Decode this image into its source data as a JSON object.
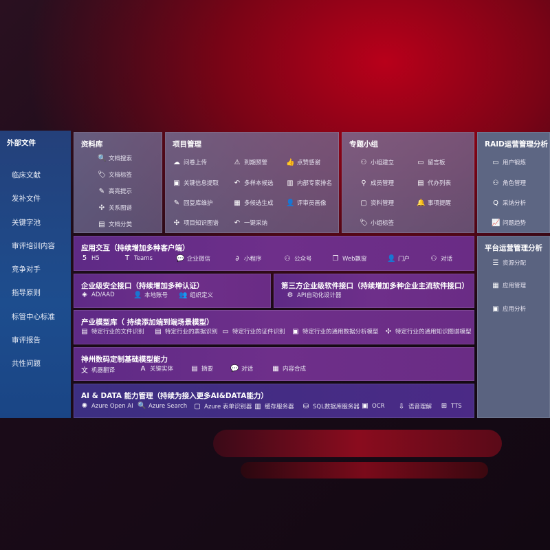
{
  "sidebar": {
    "title": "外部文件",
    "items": [
      "临床文献",
      "发补文件",
      "关键字池",
      "审评培训内容",
      "竞争对手",
      "指导原则",
      "标管中心标准",
      "审评报告",
      "共性问题"
    ]
  },
  "sections": {
    "library": {
      "title": "资料库",
      "items": [
        {
          "label": "文档搜索",
          "icon": "doc-search-icon",
          "g": "🔍"
        },
        {
          "label": "文档标签",
          "icon": "tag-icon",
          "g": "🏷"
        },
        {
          "label": "高亮提示",
          "icon": "pen-icon",
          "g": "✎"
        },
        {
          "label": "关系图谱",
          "icon": "graph-icon",
          "g": "✣"
        },
        {
          "label": "文档分类",
          "icon": "doc-category-icon",
          "g": "▤"
        }
      ]
    },
    "project": {
      "title": "项目管理",
      "items": [
        {
          "label": "问卷上传",
          "icon": "cloud-upload-icon",
          "g": "☁"
        },
        {
          "label": "关键信息提取",
          "icon": "extract-icon",
          "g": "▣"
        },
        {
          "label": "回复库维护",
          "icon": "edit-icon",
          "g": "✎"
        },
        {
          "label": "项目知识图谱",
          "icon": "graph-icon",
          "g": "✣"
        },
        {
          "label": "到期预警",
          "icon": "alarm-icon",
          "g": "⚠"
        },
        {
          "label": "多样本候选",
          "icon": "reply-icon",
          "g": "↶"
        },
        {
          "label": "多候选生成",
          "icon": "puzzle-icon",
          "g": "▦"
        },
        {
          "label": "一键采纳",
          "icon": "reply-icon",
          "g": "↶"
        },
        {
          "label": "点赞感谢",
          "icon": "thumbs-up-icon",
          "g": "👍"
        },
        {
          "label": "内部专家排名",
          "icon": "ranking-icon",
          "g": "▥"
        },
        {
          "label": "评审员画像",
          "icon": "user-icon",
          "g": "👤"
        }
      ]
    },
    "group": {
      "title": "专题小组",
      "items": [
        {
          "label": "小组建立",
          "icon": "group-icon",
          "g": "⚇"
        },
        {
          "label": "成员管理",
          "icon": "member-icon",
          "g": "⚲"
        },
        {
          "label": "资料管理",
          "icon": "folder-icon",
          "g": "▢"
        },
        {
          "label": "小组标签",
          "icon": "tag-icon",
          "g": "🏷"
        },
        {
          "label": "留言板",
          "icon": "bbs-icon",
          "g": "▭"
        },
        {
          "label": "代办列表",
          "icon": "clipboard-icon",
          "g": "▤"
        },
        {
          "label": "事项提醒",
          "icon": "bell-icon",
          "g": "🔔"
        }
      ]
    },
    "raid": {
      "title": "RAID运营管理分析",
      "items": [
        {
          "label": "用户锻炼",
          "icon": "id-card-icon",
          "g": "▭"
        },
        {
          "label": "角色管理",
          "icon": "users-icon",
          "g": "⚇"
        },
        {
          "label": "采纳分析",
          "icon": "qa-icon",
          "g": "Q"
        },
        {
          "label": "问题趋势",
          "icon": "trend-icon",
          "g": "📈"
        }
      ]
    },
    "platform": {
      "title": "平台运营管理分析",
      "items": [
        {
          "label": "资源分配",
          "icon": "checklist-icon",
          "g": "☰"
        },
        {
          "label": "应用管理",
          "icon": "apps-icon",
          "g": "▦"
        },
        {
          "label": "应用分析",
          "icon": "analysis-icon",
          "g": "▣"
        }
      ]
    },
    "interaction": {
      "title": "应用交互（持续增加多种客户端）",
      "items": [
        {
          "label": "H5",
          "icon": "html5-icon",
          "g": "5"
        },
        {
          "label": "Teams",
          "icon": "teams-icon",
          "g": "T"
        },
        {
          "label": "企业微信",
          "icon": "wecom-icon",
          "g": "💬"
        },
        {
          "label": "小程序",
          "icon": "miniprogram-icon",
          "g": "∂"
        },
        {
          "label": "公众号",
          "icon": "official-account-icon",
          "g": "⚇"
        },
        {
          "label": "Web飘窗",
          "icon": "window-icon",
          "g": "❐"
        },
        {
          "label": "门户",
          "icon": "portal-icon",
          "g": "👤"
        },
        {
          "label": "对话",
          "icon": "chat-users-icon",
          "g": "⚇"
        }
      ]
    },
    "security": {
      "title": "企业级安全接口（持续增加多种认证）",
      "items": [
        {
          "label": "AD/AAD",
          "icon": "ad-icon",
          "g": "◈"
        },
        {
          "label": "本地账号",
          "icon": "local-account-icon",
          "g": "👤"
        },
        {
          "label": "组织定义",
          "icon": "org-icon",
          "g": "👥"
        }
      ]
    },
    "thirdparty": {
      "title": "第三方企业级软件接口（持续增加多种企业主流软件接口）",
      "items": [
        {
          "label": "API自动化设计器",
          "icon": "api-gear-icon",
          "g": "⚙"
        }
      ]
    },
    "industry": {
      "title": "产业模型库（ 持续添加端到端场景模型）",
      "items": [
        {
          "label": "特定行业的文件识别",
          "icon": "file-icon",
          "g": "▤"
        },
        {
          "label": "特定行业的票据识别",
          "icon": "receipt-icon",
          "g": "▤"
        },
        {
          "label": "特定行业的证件识别",
          "icon": "id-card-icon",
          "g": "▭"
        },
        {
          "label": "特定行业的通用数据分析模型",
          "icon": "data-chart-icon",
          "g": "▣"
        },
        {
          "label": "特定行业的通用知识图谱模型",
          "icon": "graph-icon",
          "g": "✣"
        }
      ]
    },
    "base": {
      "title": "神州数码定制基础模型能力",
      "items": [
        {
          "label": "机器翻译",
          "icon": "translate-icon",
          "g": "文"
        },
        {
          "label": "关键实体",
          "icon": "entity-icon",
          "g": "A"
        },
        {
          "label": "摘要",
          "icon": "summary-icon",
          "g": "▤"
        },
        {
          "label": "对话",
          "icon": "chat-icon",
          "g": "💬"
        },
        {
          "label": "内容合成",
          "icon": "puzzle-icon",
          "g": "▦"
        }
      ]
    },
    "aidata": {
      "title": "AI & DATA 能力管理（持续为接入更多AI&DATA能力）",
      "items": [
        {
          "label": "Azure Open AI",
          "icon": "openai-icon",
          "g": "✺"
        },
        {
          "label": "Azure Search",
          "icon": "search-doc-icon",
          "g": "🔍"
        },
        {
          "label": "Azure 表单识别器",
          "icon": "form-recognizer-icon",
          "g": "▢"
        },
        {
          "label": "缓存服务器",
          "icon": "cache-server-icon",
          "g": "▥"
        },
        {
          "label": "SQL数据库服务器",
          "icon": "database-icon",
          "g": "⛁"
        },
        {
          "label": "OCR",
          "icon": "ocr-icon",
          "g": "▣"
        },
        {
          "label": "语音理解",
          "icon": "speech-icon",
          "g": "⇩"
        },
        {
          "label": "TTS",
          "icon": "tts-icon",
          "g": "⊞"
        }
      ]
    }
  }
}
